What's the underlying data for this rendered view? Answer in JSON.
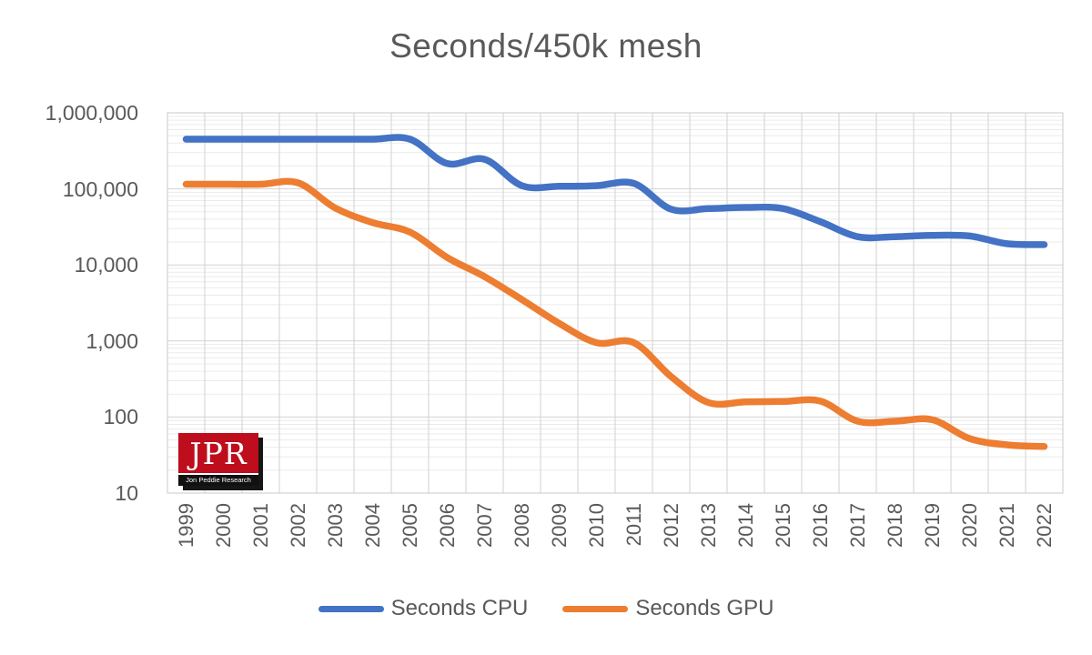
{
  "chart_data": {
    "type": "line",
    "title": "Seconds/450k mesh",
    "x_axis": {
      "categories": [
        "1999",
        "2000",
        "2001",
        "2002",
        "2003",
        "2004",
        "2005",
        "2006",
        "2007",
        "2008",
        "2009",
        "2010",
        "2011",
        "2012",
        "2013",
        "2014",
        "2015",
        "2016",
        "2017",
        "2018",
        "2019",
        "2020",
        "2021",
        "2022"
      ]
    },
    "y_axis": {
      "scale": "log",
      "min": 10,
      "max": 1000000,
      "tick_labels": [
        "1,000,000",
        "100,000",
        "10,000",
        "1,000",
        "100",
        "10"
      ],
      "tick_values": [
        1000000,
        100000,
        10000,
        1000,
        100,
        10
      ]
    },
    "grid": {
      "major": true,
      "minor_log": true
    },
    "legend_position": "bottom",
    "series": [
      {
        "name": "Seconds CPU",
        "color": "#4472C4",
        "values": [
          450000,
          450000,
          450000,
          450000,
          450000,
          450000,
          450000,
          215000,
          245000,
          110000,
          108000,
          110000,
          118000,
          54000,
          55000,
          57000,
          55000,
          37000,
          23500,
          23500,
          24500,
          24000,
          19000,
          18500
        ]
      },
      {
        "name": "Seconds GPU",
        "color": "#ED7D31",
        "values": [
          115000,
          115000,
          115000,
          120000,
          56000,
          36000,
          27000,
          12500,
          7000,
          3500,
          1700,
          950,
          950,
          340,
          155,
          158,
          160,
          162,
          88,
          88,
          92,
          52,
          43,
          41
        ]
      }
    ]
  },
  "watermark": {
    "initials": "JPR",
    "full_name": "Jon Peddie Research",
    "bg_color": "#BE0D1C"
  },
  "colors": {
    "text": "#595959",
    "grid_major": "#d2d2d2",
    "grid_minor": "#ebebeb",
    "plot_border": "#c9c9c9"
  }
}
